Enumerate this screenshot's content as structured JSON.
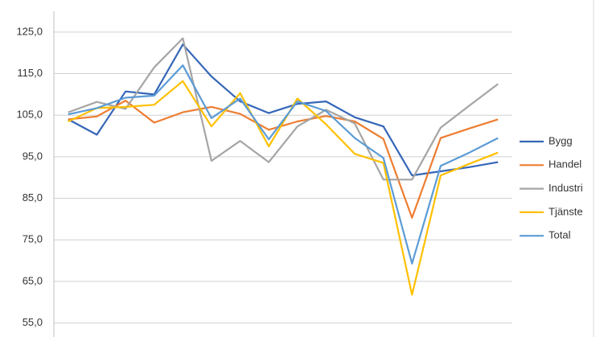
{
  "chart_data": {
    "type": "line",
    "categories": [
      null,
      null,
      null,
      null,
      null,
      null,
      null,
      null,
      null,
      null,
      null,
      null,
      null,
      null,
      null,
      null
    ],
    "series": [
      {
        "name": "Bygg",
        "color": "#3566b8",
        "values": [
          104,
          100.3,
          110.7,
          110,
          122,
          114.3,
          108.3,
          105.5,
          107.7,
          108.3,
          104.5,
          102.3,
          90.5,
          91.5,
          92.5,
          93.7
        ]
      },
      {
        "name": "Handel",
        "color": "#ed7d31",
        "values": [
          104,
          104.7,
          108.5,
          103.2,
          105.7,
          107,
          105.3,
          101.5,
          103.5,
          104.8,
          103.5,
          99.3,
          80.3,
          99.5,
          101.8,
          104
        ]
      },
      {
        "name": "Industri",
        "color": "#a5a5a5",
        "values": [
          105.7,
          108.2,
          106.5,
          116.5,
          123.5,
          94,
          98.8,
          93.7,
          102.3,
          106.3,
          103,
          89.5,
          89.5,
          102,
          107.3,
          112.5
        ]
      },
      {
        "name": "Tjänste",
        "color": "#ffc000",
        "values": [
          103.5,
          106.7,
          107,
          107.5,
          113.2,
          102.3,
          110.3,
          97.5,
          109,
          102.8,
          95.7,
          93.5,
          61.8,
          90.5,
          93.3,
          96
        ]
      },
      {
        "name": "Total",
        "color": "#5b9bd5",
        "values": [
          105.2,
          106.7,
          109.2,
          109.7,
          117,
          104.3,
          109,
          99.2,
          108.3,
          106,
          99.5,
          94.7,
          69.3,
          92.8,
          96,
          99.5
        ]
      }
    ],
    "ylim": [
      55,
      130
    ],
    "yticks": [
      {
        "value": 55,
        "label": "55,0"
      },
      {
        "value": 65,
        "label": "65,0"
      },
      {
        "value": 75,
        "label": "75,0"
      },
      {
        "value": 85,
        "label": "85,0"
      },
      {
        "value": 95,
        "label": "95,0"
      },
      {
        "value": 105,
        "label": "105,0"
      },
      {
        "value": 115,
        "label": "115,0"
      },
      {
        "value": 125,
        "label": "125,0"
      }
    ],
    "grid": true,
    "legend": "right"
  }
}
